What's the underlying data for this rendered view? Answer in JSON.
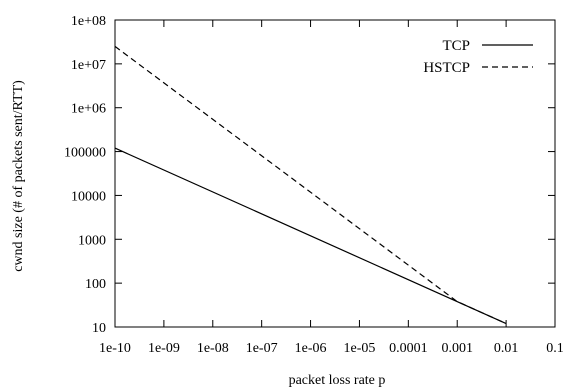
{
  "chart_data": {
    "type": "line",
    "xlabel": "packet loss rate p",
    "ylabel": "cwnd size (# of packets sent/RTT)",
    "x_scale": "log",
    "y_scale": "log",
    "xlim": [
      1e-10,
      0.1
    ],
    "ylim": [
      10,
      100000000
    ],
    "x_ticks": [
      {
        "value": 1e-10,
        "label": "1e-10"
      },
      {
        "value": 1e-09,
        "label": "1e-09"
      },
      {
        "value": 1e-08,
        "label": "1e-08"
      },
      {
        "value": 1e-07,
        "label": "1e-07"
      },
      {
        "value": 1e-06,
        "label": "1e-06"
      },
      {
        "value": 1e-05,
        "label": "1e-05"
      },
      {
        "value": 0.0001,
        "label": "0.0001"
      },
      {
        "value": 0.001,
        "label": "0.001"
      },
      {
        "value": 0.01,
        "label": "0.01"
      },
      {
        "value": 0.1,
        "label": "0.1"
      }
    ],
    "y_ticks": [
      {
        "value": 10,
        "label": "10"
      },
      {
        "value": 100,
        "label": "100"
      },
      {
        "value": 1000,
        "label": "1000"
      },
      {
        "value": 10000,
        "label": "10000"
      },
      {
        "value": 100000,
        "label": "100000"
      },
      {
        "value": 1000000,
        "label": "1e+06"
      },
      {
        "value": 10000000,
        "label": "1e+07"
      },
      {
        "value": 100000000,
        "label": "1e+08"
      }
    ],
    "grid": false,
    "legend_position": "top-right",
    "series": [
      {
        "name": "TCP",
        "style": "solid",
        "color": "#000000",
        "points": [
          [
            1e-10,
            120000
          ],
          [
            0.01,
            12
          ]
        ]
      },
      {
        "name": "HSTCP",
        "style": "dashed",
        "color": "#000000",
        "points": [
          [
            1e-10,
            25000000
          ],
          [
            0.001,
            38
          ],
          [
            0.01,
            12
          ]
        ]
      }
    ]
  }
}
